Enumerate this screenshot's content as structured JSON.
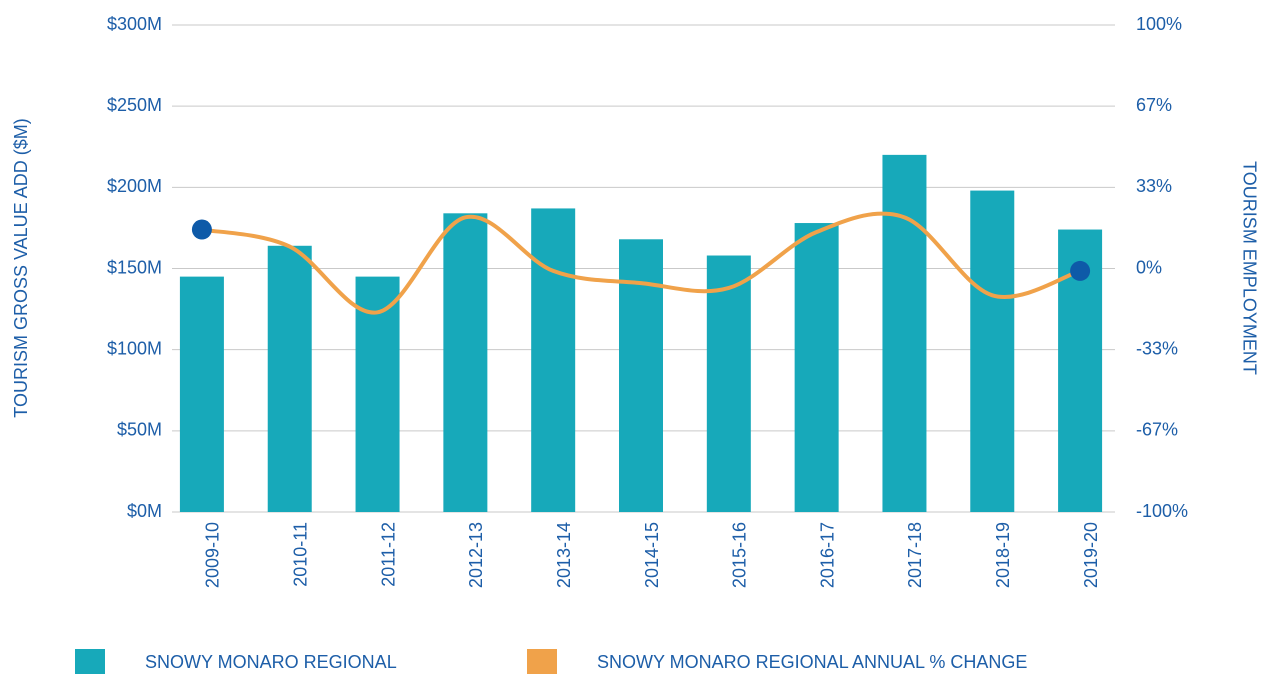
{
  "chart_data": {
    "type": "bar-line",
    "y_label": "TOURISM GROSS VALUE ADD ($M)",
    "y2_label": "TOURISM EMPLOYMENT",
    "categories": [
      "2009-10",
      "2010-11",
      "2011-12",
      "2012-13",
      "2013-14",
      "2014-15",
      "2015-16",
      "2016-17",
      "2017-18",
      "2018-19",
      "2019-20"
    ],
    "series": [
      {
        "name": "SNOWY MONARO REGIONAL",
        "type": "bar",
        "color": "#17a9ba",
        "values": [
          145,
          164,
          145,
          184,
          187,
          168,
          158,
          178,
          220,
          198,
          174
        ]
      },
      {
        "name": "SNOWY MONARO REGIONAL ANNUAL % CHANGE",
        "type": "line",
        "axis": "y2",
        "color": "#f0a24a",
        "marker_color": "#0e5aa8",
        "values": [
          16,
          9,
          -18,
          21,
          -1,
          -6,
          -8,
          15,
          21,
          -11,
          -1
        ]
      }
    ],
    "ylim": [
      0,
      300
    ],
    "yticks": [
      {
        "value": 0,
        "label": "$0M"
      },
      {
        "value": 50,
        "label": "$50M"
      },
      {
        "value": 100,
        "label": "$100M"
      },
      {
        "value": 150,
        "label": "$150M"
      },
      {
        "value": 200,
        "label": "$200M"
      },
      {
        "value": 250,
        "label": "$250M"
      },
      {
        "value": 300,
        "label": "$300M"
      }
    ],
    "y2lim": [
      -100,
      100
    ],
    "y2ticks": [
      {
        "value": -100,
        "label": "-100%"
      },
      {
        "value": -66.67,
        "label": "-67%"
      },
      {
        "value": -33.33,
        "label": "-33%"
      },
      {
        "value": 0,
        "label": "0%"
      },
      {
        "value": 33.33,
        "label": "33%"
      },
      {
        "value": 66.67,
        "label": "67%"
      },
      {
        "value": 100,
        "label": "100%"
      }
    ],
    "grid": true
  }
}
